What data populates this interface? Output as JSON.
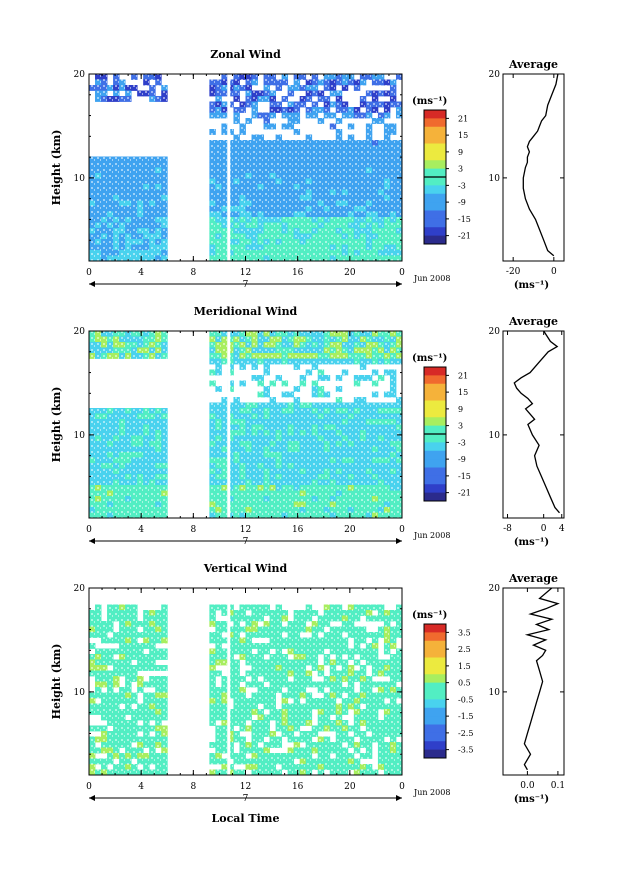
{
  "chart_data": [
    {
      "type": "heatmap",
      "title": "Zonal Wind",
      "xlabel": "",
      "ylabel": "Height (km)",
      "x_ticks": [
        "0",
        "4",
        "8",
        "12",
        "16",
        "20",
        "0"
      ],
      "y_ticks": [
        "10",
        "20"
      ],
      "day_label": "7",
      "date_label": "Jun 2008",
      "xlim": [
        0,
        24
      ],
      "ylim": [
        2,
        20
      ],
      "data_gap_hours": [
        5.8,
        9.3
      ],
      "colorbar": {
        "unit": "(ms⁻¹)",
        "ticks": [
          "21",
          "15",
          "9",
          "3",
          "-3",
          "-9",
          "-15",
          "-21"
        ],
        "range": [
          -24,
          24
        ],
        "zero_line": true
      },
      "profile": {
        "title": "Average",
        "unit": "(ms⁻¹)",
        "x_ticks": [
          "-20",
          "0"
        ],
        "y_ticks": [
          "10",
          "20"
        ],
        "xlim": [
          -25,
          5
        ],
        "ylim": [
          2,
          20
        ],
        "x": [
          0,
          -3,
          -5,
          -7,
          -9,
          -12,
          -14,
          -15,
          -15,
          -14,
          -13,
          -13,
          -12,
          -13,
          -12,
          -10,
          -8,
          -7,
          -6,
          -4,
          -3,
          -1,
          1,
          2
        ],
        "y": [
          2.5,
          3,
          4,
          5,
          6,
          7,
          8,
          9,
          10,
          11,
          11.5,
          12,
          12.5,
          13,
          13.5,
          14,
          14.5,
          15,
          15.5,
          16,
          17,
          18,
          19,
          20
        ]
      }
    },
    {
      "type": "heatmap",
      "title": "Meridional Wind",
      "xlabel": "",
      "ylabel": "Height (km)",
      "x_ticks": [
        "0",
        "4",
        "8",
        "12",
        "16",
        "20",
        "0"
      ],
      "y_ticks": [
        "10",
        "20"
      ],
      "day_label": "7",
      "date_label": "Jun 2008",
      "xlim": [
        0,
        24
      ],
      "ylim": [
        2,
        20
      ],
      "data_gap_hours": [
        5.8,
        9.3
      ],
      "colorbar": {
        "unit": "(ms⁻¹)",
        "ticks": [
          "21",
          "15",
          "9",
          "3",
          "-3",
          "-9",
          "-15",
          "-21"
        ],
        "range": [
          -24,
          24
        ],
        "zero_line": true
      },
      "profile": {
        "title": "Average",
        "unit": "(ms⁻¹)",
        "x_ticks": [
          "-8",
          "0",
          "4"
        ],
        "y_ticks": [
          "10",
          "20"
        ],
        "xlim": [
          -9,
          4.5
        ],
        "ylim": [
          2,
          20
        ],
        "x": [
          3.5,
          2.5,
          1.5,
          0.5,
          -0.5,
          -1.5,
          -2,
          -1,
          -2.5,
          -3.5,
          -2,
          -3,
          -4,
          -2.5,
          -3.5,
          -5,
          -6,
          -6.5,
          -5,
          -3,
          -1,
          1,
          3,
          1.5,
          0
        ],
        "y": [
          2.5,
          3,
          4,
          5,
          6,
          7,
          8,
          9,
          10,
          11,
          11.5,
          12,
          12.5,
          13,
          13.5,
          14,
          14.5,
          15,
          15.5,
          16,
          17,
          18,
          18.5,
          19,
          20
        ]
      }
    },
    {
      "type": "heatmap",
      "title": "Vertical Wind",
      "xlabel": "Local Time",
      "ylabel": "Height (km)",
      "x_ticks": [
        "0",
        "4",
        "8",
        "12",
        "16",
        "20",
        "0"
      ],
      "y_ticks": [
        "10",
        "20"
      ],
      "day_label": "7",
      "date_label": "Jun 2008",
      "xlim": [
        0,
        24
      ],
      "ylim": [
        2,
        20
      ],
      "data_gap_hours": [
        5.8,
        9.1
      ],
      "colorbar": {
        "unit": "(ms⁻¹)",
        "ticks": [
          "3.5",
          "2.5",
          "1.5",
          "0.5",
          "-0.5",
          "-1.5",
          "-2.5",
          "-3.5"
        ],
        "range": [
          -4,
          4
        ],
        "zero_line": false
      },
      "profile": {
        "title": "Average",
        "unit": "(ms⁻¹)",
        "x_ticks": [
          "0.0",
          "0.1"
        ],
        "y_ticks": [
          "10",
          "20"
        ],
        "xlim": [
          -0.08,
          0.12
        ],
        "ylim": [
          2,
          20
        ],
        "x": [
          0.0,
          -0.01,
          0.01,
          -0.01,
          0.0,
          0.01,
          0.02,
          0.03,
          0.04,
          0.05,
          0.04,
          0.03,
          0.05,
          0.06,
          0.02,
          0.06,
          0.0,
          0.07,
          0.03,
          0.08,
          0.01,
          0.06,
          0.1,
          0.04,
          0.08
        ],
        "y": [
          2.5,
          3,
          4,
          5,
          6,
          7,
          8,
          9,
          10,
          11,
          12,
          13,
          13.5,
          14,
          14.5,
          15,
          15.5,
          16,
          16.5,
          17,
          17.5,
          18,
          18.5,
          19,
          20
        ]
      }
    }
  ]
}
